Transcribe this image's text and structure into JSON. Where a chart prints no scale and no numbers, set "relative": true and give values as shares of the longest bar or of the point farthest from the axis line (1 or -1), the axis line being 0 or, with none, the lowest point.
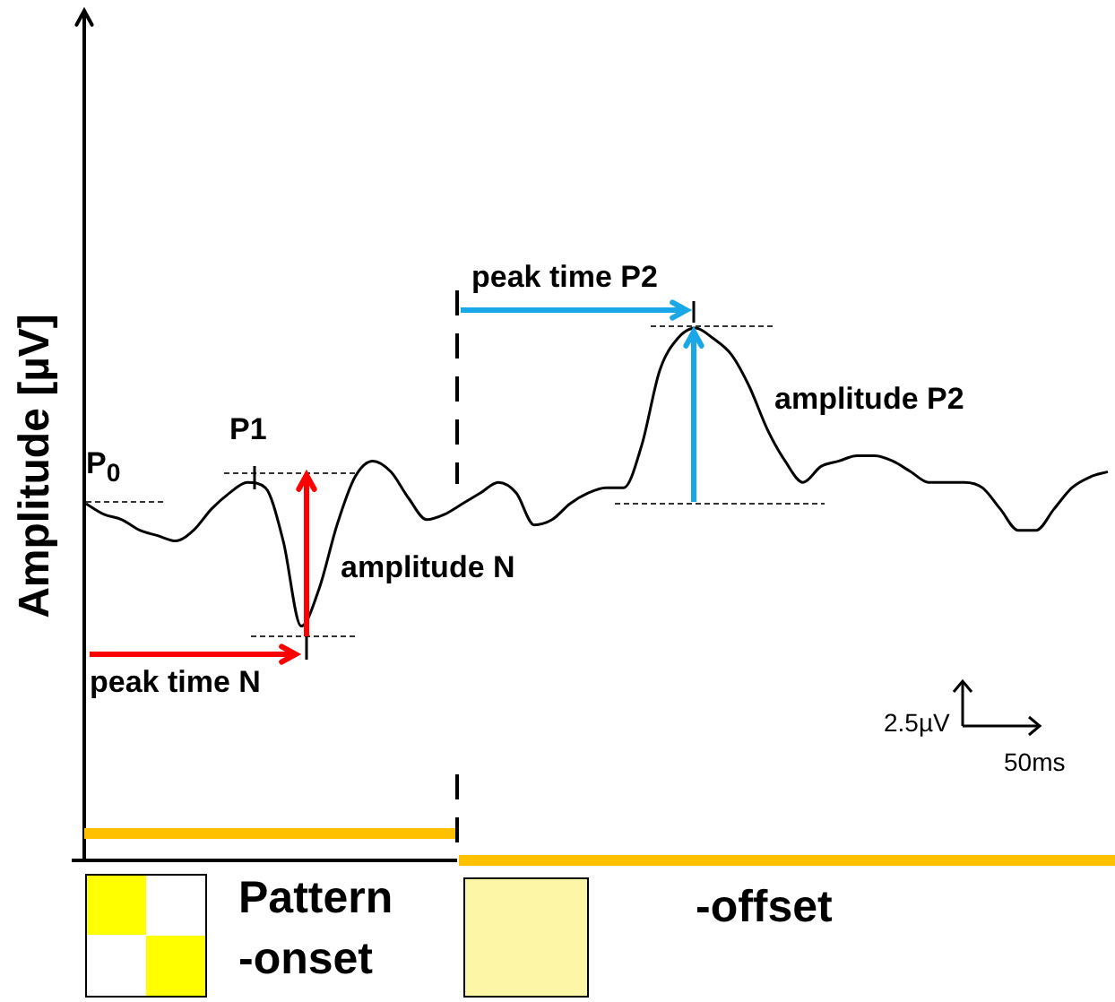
{
  "chart_data": {
    "type": "line",
    "relative": true,
    "ylabel": "Amplitude [µV]",
    "color": "#000000",
    "marker": "none",
    "legend": false,
    "categories": [
      null,
      null,
      null,
      null,
      null,
      null,
      null,
      null,
      null,
      null,
      null,
      null,
      null,
      null,
      null,
      null,
      null,
      null,
      null,
      null,
      null,
      null,
      null,
      null,
      null,
      null,
      null,
      null,
      null,
      null,
      null,
      null,
      null,
      null,
      null,
      null,
      null,
      null,
      null,
      null,
      null,
      null,
      null,
      null,
      null,
      null,
      null,
      null,
      null,
      null,
      null,
      null,
      null,
      null,
      null,
      null,
      null,
      null
    ],
    "values": [
      0.67,
      0.65,
      0.64,
      0.62,
      0.61,
      0.6,
      0.62,
      0.66,
      0.69,
      0.71,
      0.7,
      0.6,
      0.44,
      0.51,
      0.63,
      0.72,
      0.75,
      0.73,
      0.68,
      0.64,
      0.65,
      0.67,
      0.69,
      0.71,
      0.69,
      0.63,
      0.64,
      0.67,
      0.69,
      0.7,
      0.7,
      0.78,
      0.92,
      0.98,
      1,
      0.98,
      0.95,
      0.89,
      0.81,
      0.75,
      0.71,
      0.74,
      0.75,
      0.76,
      0.76,
      0.75,
      0.73,
      0.71,
      0.71,
      0.71,
      0.7,
      0.66,
      0.62,
      0.62,
      0.66,
      0.7,
      0.72,
      0.73
    ],
    "annotations": [
      "P$_{0}$",
      "P1",
      "amplitude N",
      "peak time N",
      "peak time P2",
      "amplitude P2",
      "2.5µV",
      "50ms",
      "Pattern",
      "-onset",
      "-offset"
    ]
  }
}
